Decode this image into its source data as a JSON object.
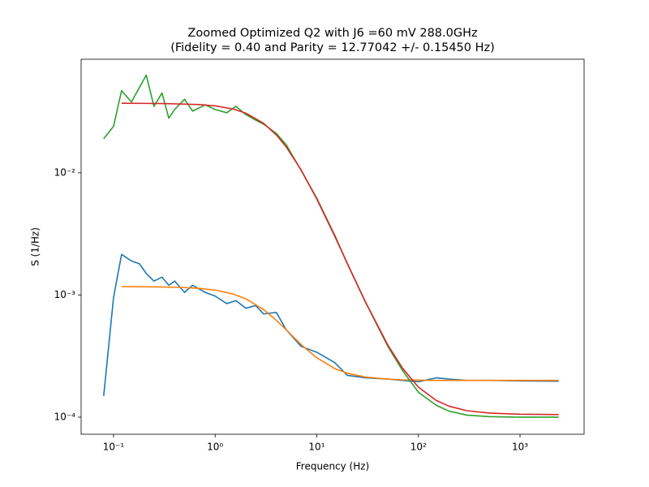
{
  "chart_data": {
    "type": "line",
    "title": "Zoomed Optimized Q2 with J6 =60 mV 288.0GHz",
    "subtitle": "(Fidelity = 0.40 and Parity = 12.77042 +/- 0.15450 Hz)",
    "x_label": "Frequency (Hz)",
    "y_label": "S (1/Hz)",
    "xscale": "log",
    "yscale": "log",
    "xlim": [
      0.048,
      4270
    ],
    "ylim": [
      7.25e-05,
      0.085
    ],
    "xticks": [
      {
        "value": 0.1,
        "label": "10⁻¹"
      },
      {
        "value": 1,
        "label": "10⁰"
      },
      {
        "value": 10,
        "label": "10¹"
      },
      {
        "value": 100,
        "label": "10²"
      },
      {
        "value": 1000,
        "label": "10³"
      }
    ],
    "yticks": [
      {
        "value": 0.0001,
        "label": "10⁻⁴"
      },
      {
        "value": 0.001,
        "label": "10⁻³"
      },
      {
        "value": 0.01,
        "label": "10⁻²"
      }
    ],
    "series": [
      {
        "color": "#1f77b4",
        "x": [
          0.08,
          0.1,
          0.12,
          0.15,
          0.18,
          0.21,
          0.25,
          0.3,
          0.35,
          0.4,
          0.5,
          0.6,
          0.8,
          1,
          1.3,
          1.6,
          2,
          2.5,
          3,
          4,
          5,
          7,
          10,
          15,
          20,
          30,
          50,
          70,
          100,
          150,
          200,
          300,
          500,
          1000,
          2400
        ],
        "values": [
          0.000149,
          0.00095,
          0.00215,
          0.0019,
          0.0018,
          0.0015,
          0.0013,
          0.0014,
          0.0012,
          0.0013,
          0.00105,
          0.0012,
          0.00105,
          0.00098,
          0.00085,
          0.0009,
          0.00078,
          0.00082,
          0.0007,
          0.00072,
          0.00052,
          0.00038,
          0.00034,
          0.00028,
          0.00022,
          0.00021,
          0.000205,
          0.0002,
          0.000195,
          0.00021,
          0.000205,
          0.0002,
          0.0002,
          0.000198,
          0.000197
        ]
      },
      {
        "color": "#ff7f0e",
        "x": [
          0.12,
          0.2,
          0.3,
          0.5,
          0.7,
          1,
          1.5,
          2,
          3,
          4,
          5,
          7,
          10,
          15,
          20,
          30,
          50,
          70,
          100,
          150,
          200,
          300,
          500,
          1000,
          2400
        ],
        "values": [
          0.00117,
          0.001167,
          0.001163,
          0.001151,
          0.001133,
          0.001097,
          0.001019,
          0.000931,
          0.000759,
          0.000621,
          0.000519,
          0.000394,
          0.000306,
          0.00025,
          0.000229,
          0.000213,
          0.000205,
          0.000202,
          0.000201,
          0.0002,
          0.0002,
          0.0002,
          0.0002,
          0.0002,
          0.0002
        ]
      },
      {
        "color": "#2ca02c",
        "x": [
          0.08,
          0.1,
          0.12,
          0.15,
          0.18,
          0.21,
          0.25,
          0.3,
          0.35,
          0.4,
          0.5,
          0.6,
          0.8,
          1,
          1.3,
          1.6,
          2,
          2.5,
          3,
          4,
          5,
          7,
          10,
          15,
          20,
          30,
          50,
          70,
          100,
          150,
          200,
          300,
          500,
          1000,
          2400
        ],
        "values": [
          0.019,
          0.024,
          0.047,
          0.038,
          0.05,
          0.063,
          0.035,
          0.045,
          0.028,
          0.033,
          0.04,
          0.032,
          0.036,
          0.033,
          0.031,
          0.035,
          0.03,
          0.027,
          0.025,
          0.021,
          0.017,
          0.0105,
          0.0062,
          0.0031,
          0.0018,
          0.00088,
          0.00038,
          0.00024,
          0.00016,
          0.000125,
          0.000112,
          0.000104,
          0.000101,
          0.0001,
          0.0001
        ]
      },
      {
        "color": "#d62728",
        "x": [
          0.12,
          0.2,
          0.3,
          0.5,
          0.7,
          1,
          1.5,
          2,
          3,
          4,
          5,
          7,
          10,
          15,
          20,
          30,
          50,
          70,
          100,
          150,
          200,
          300,
          500,
          1000,
          2400
        ],
        "values": [
          0.0371,
          0.037,
          0.0369,
          0.0365,
          0.0362,
          0.0353,
          0.0333,
          0.0308,
          0.0254,
          0.0204,
          0.0163,
          0.0106,
          0.00611,
          0.00304,
          0.00181,
          0.000884,
          0.000389,
          0.000251,
          0.000176,
          0.000137,
          0.000123,
          0.000113,
          0.000108,
          0.0001057,
          0.000105
        ]
      }
    ]
  }
}
